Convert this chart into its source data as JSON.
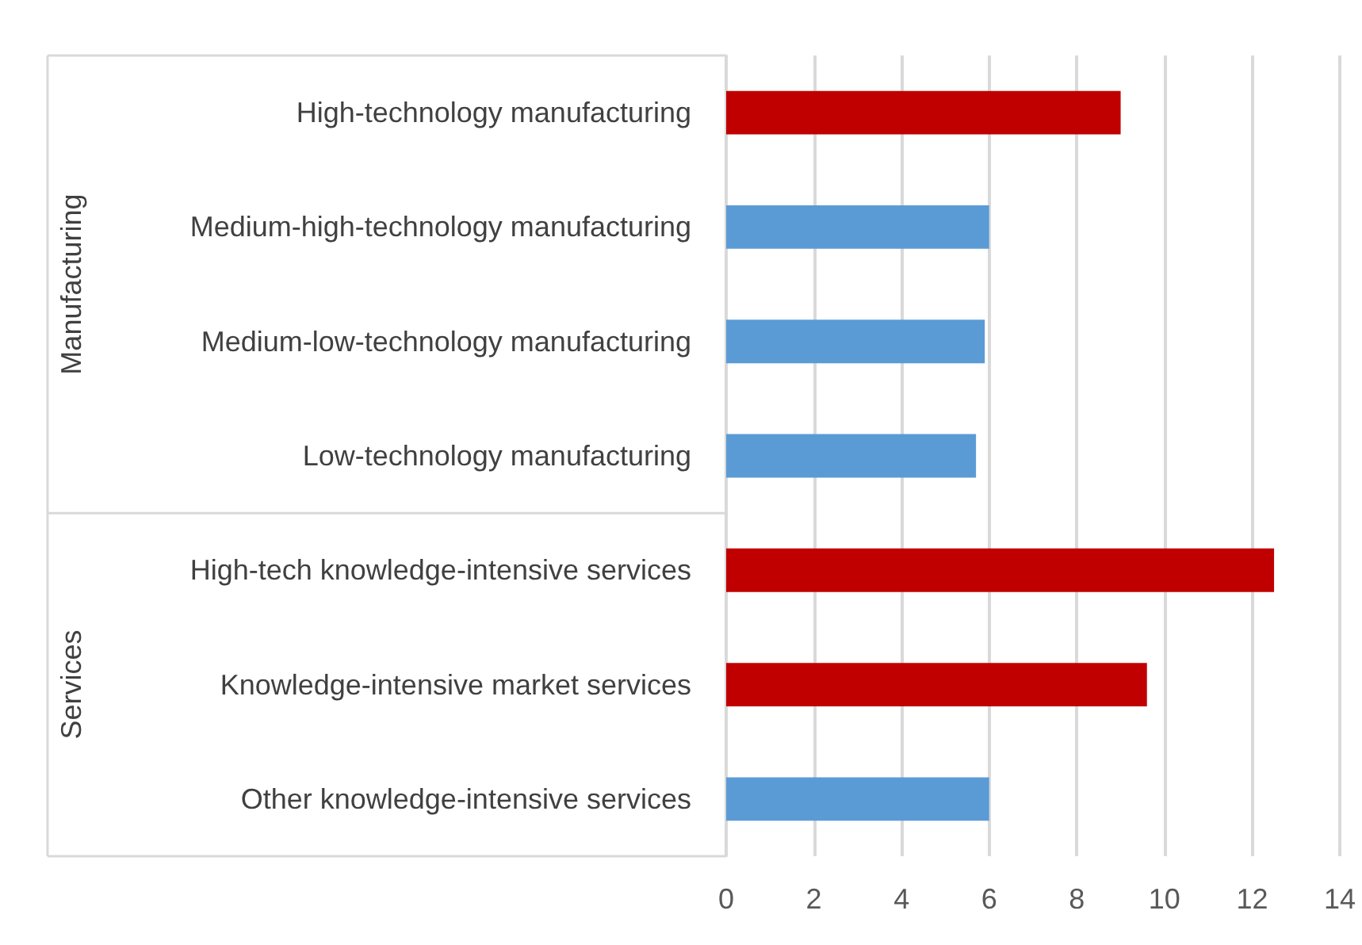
{
  "chart_data": {
    "type": "bar",
    "orientation": "horizontal",
    "categories": [
      "High-technology manufacturing",
      "Medium-high-technology manufacturing",
      "Medium-low-technology manufacturing",
      "Low-technology manufacturing",
      "High-tech knowledge-intensive services",
      "Knowledge-intensive market services",
      "Other knowledge-intensive services"
    ],
    "values": [
      9.0,
      6.0,
      5.9,
      5.7,
      12.5,
      9.6,
      6.0
    ],
    "colors": [
      "#c00000",
      "#5b9bd5",
      "#5b9bd5",
      "#5b9bd5",
      "#c00000",
      "#c00000",
      "#5b9bd5"
    ],
    "xlim": [
      0,
      14
    ],
    "xticks": [
      0,
      2,
      4,
      6,
      8,
      10,
      12,
      14
    ],
    "grid": "x",
    "annotations": [
      "Manufacturing",
      "Services"
    ]
  }
}
